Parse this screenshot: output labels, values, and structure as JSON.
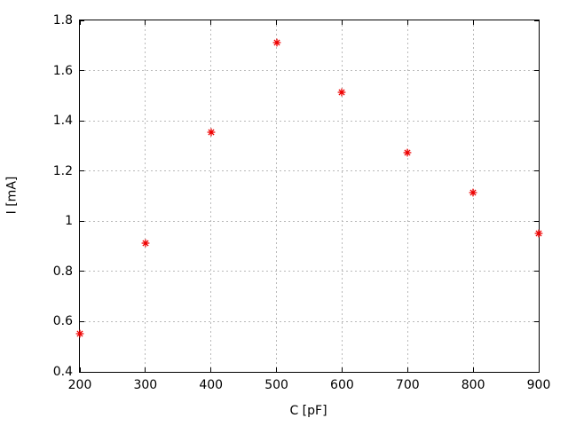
{
  "chart_data": {
    "type": "scatter",
    "title": "",
    "xlabel": "C [pF]",
    "ylabel": "I [mA]",
    "x": [
      200,
      300,
      400,
      500,
      600,
      700,
      800,
      900
    ],
    "y": [
      0.56,
      0.92,
      1.36,
      1.72,
      1.52,
      1.28,
      1.12,
      0.96
    ],
    "xlim": [
      200,
      900
    ],
    "ylim": [
      0.4,
      1.8
    ],
    "xticks": [
      {
        "v": 200,
        "label": "200"
      },
      {
        "v": 300,
        "label": "300"
      },
      {
        "v": 400,
        "label": "400"
      },
      {
        "v": 500,
        "label": "500"
      },
      {
        "v": 600,
        "label": "600"
      },
      {
        "v": 700,
        "label": "700"
      },
      {
        "v": 800,
        "label": "800"
      },
      {
        "v": 900,
        "label": "900"
      }
    ],
    "yticks": [
      {
        "v": 0.4,
        "label": "0.4"
      },
      {
        "v": 0.6,
        "label": "0.6"
      },
      {
        "v": 0.8,
        "label": "0.8"
      },
      {
        "v": 1.0,
        "label": "1"
      },
      {
        "v": 1.2,
        "label": "1.2"
      },
      {
        "v": 1.4,
        "label": "1.4"
      },
      {
        "v": 1.6,
        "label": "1.6"
      },
      {
        "v": 1.8,
        "label": "1.8"
      }
    ],
    "grid": true,
    "legend": "none",
    "marker": "asterisk",
    "colors": {
      "marker": "#ee0000",
      "grid": "#b9b9b9",
      "axis": "#000000",
      "text": "#000000",
      "background": "#ffffff"
    }
  }
}
